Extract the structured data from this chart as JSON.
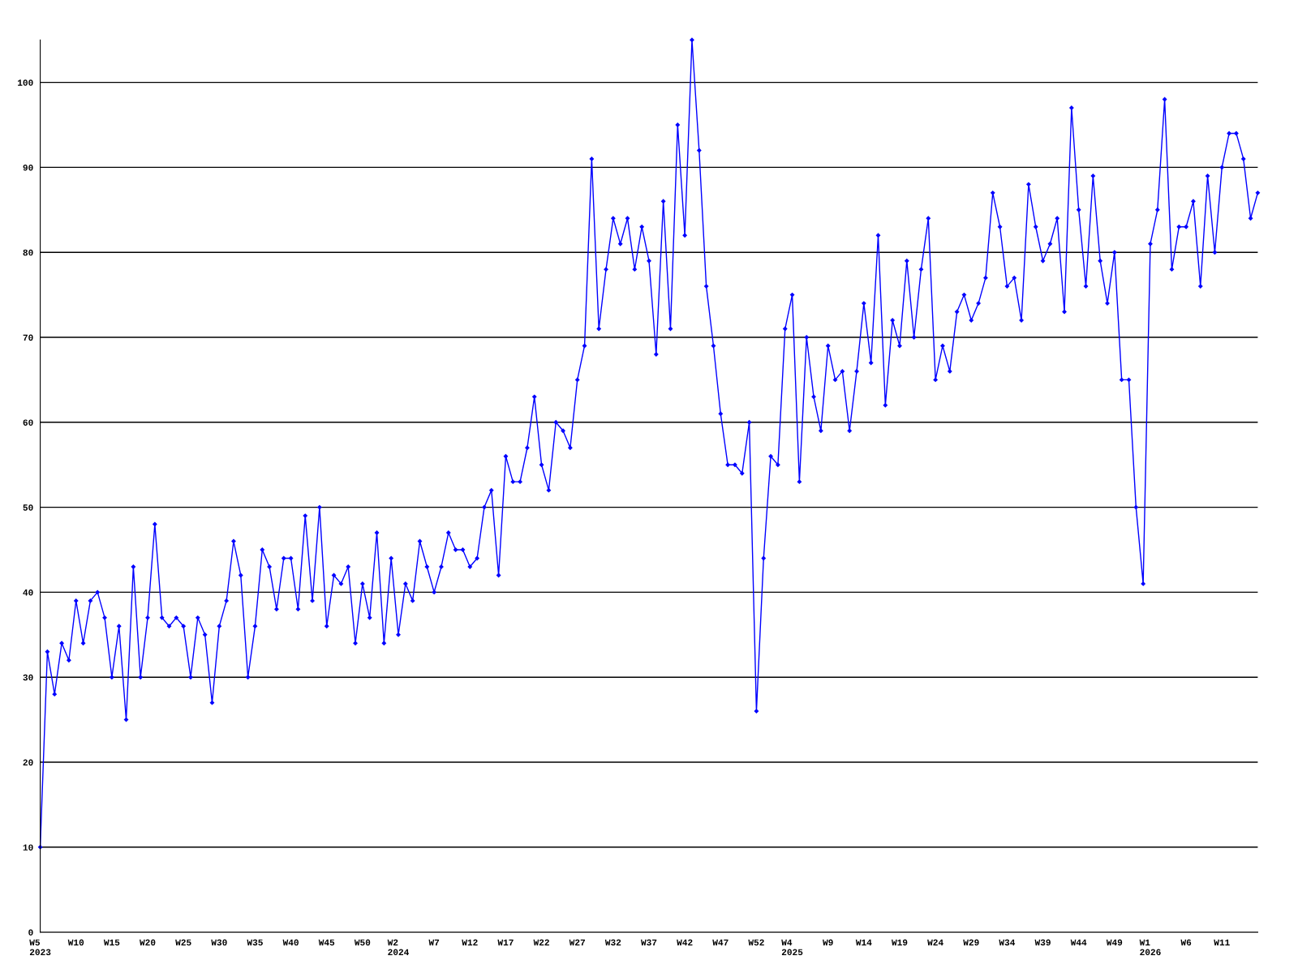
{
  "chart_data": {
    "type": "line",
    "categories": [
      "W5\n2023",
      null,
      null,
      null,
      null,
      "W10",
      null,
      null,
      null,
      null,
      "W15",
      null,
      null,
      null,
      null,
      "W20",
      null,
      null,
      null,
      null,
      "W25",
      null,
      null,
      null,
      null,
      "W30",
      null,
      null,
      null,
      null,
      "W35",
      null,
      null,
      null,
      null,
      "W40",
      null,
      null,
      null,
      null,
      "W45",
      null,
      null,
      null,
      null,
      "W50",
      null,
      null,
      null,
      null,
      "W2\n2024",
      null,
      null,
      null,
      null,
      "W7",
      null,
      null,
      null,
      null,
      "W12",
      null,
      null,
      null,
      null,
      "W17",
      null,
      null,
      null,
      null,
      "W22",
      null,
      null,
      null,
      null,
      "W27",
      null,
      null,
      null,
      null,
      "W32",
      null,
      null,
      null,
      null,
      "W37",
      null,
      null,
      null,
      null,
      "W42",
      null,
      null,
      null,
      null,
      "W47",
      null,
      null,
      null,
      null,
      "W52",
      null,
      null,
      null,
      null,
      "W4\n2025",
      null,
      null,
      null,
      null,
      "W9",
      null,
      null,
      null,
      null,
      "W14",
      null,
      null,
      null,
      null,
      "W19",
      null,
      null,
      null,
      null,
      "W24",
      null,
      null,
      null,
      null,
      "W29",
      null,
      null,
      null,
      null,
      "W34",
      null,
      null,
      null,
      null,
      "W39",
      null,
      null,
      null,
      null,
      "W44",
      null,
      null,
      null,
      null,
      "W49",
      null,
      null,
      null,
      null,
      "W1\n2026",
      null,
      null,
      null,
      null,
      "W6",
      null,
      null,
      null,
      null,
      "W11",
      null,
      null,
      null,
      null,
      null
    ],
    "series": [
      {
        "color": "#0000ff",
        "values": [
          10,
          33,
          28,
          34,
          32,
          39,
          34,
          39,
          40,
          37,
          30,
          36,
          25,
          43,
          30,
          37,
          48,
          37,
          36,
          37,
          36,
          30,
          37,
          35,
          27,
          36,
          39,
          46,
          42,
          30,
          36,
          45,
          43,
          38,
          44,
          44,
          38,
          49,
          39,
          50,
          36,
          42,
          41,
          43,
          34,
          41,
          37,
          47,
          34,
          44,
          35,
          41,
          39,
          46,
          43,
          40,
          43,
          47,
          45,
          45,
          43,
          44,
          50,
          52,
          42,
          56,
          53,
          53,
          57,
          63,
          55,
          52,
          60,
          59,
          57,
          65,
          69,
          91,
          71,
          78,
          84,
          81,
          84,
          78,
          83,
          79,
          68,
          86,
          71,
          95,
          82,
          105,
          92,
          76,
          69,
          61,
          55,
          55,
          54,
          60,
          26,
          44,
          56,
          55,
          71,
          75,
          53,
          70,
          63,
          59,
          69,
          65,
          66,
          59,
          66,
          74,
          67,
          82,
          62,
          72,
          69,
          79,
          70,
          78,
          84,
          65,
          69,
          66,
          73,
          75,
          72,
          74,
          77,
          87,
          83,
          76,
          77,
          72,
          88,
          83,
          79,
          81,
          84,
          73,
          97,
          85,
          76,
          89,
          79,
          74,
          80,
          65,
          65,
          50,
          41,
          81,
          85,
          98,
          78,
          83,
          83,
          86,
          76,
          89,
          80,
          90,
          94,
          94,
          91,
          84,
          87
        ]
      }
    ],
    "ylim": [
      0,
      105
    ],
    "yticks": [
      0,
      10,
      20,
      30,
      40,
      50,
      60,
      70,
      80,
      90,
      100
    ],
    "grid": "y",
    "marker": "diamond",
    "line_style": "solid"
  }
}
